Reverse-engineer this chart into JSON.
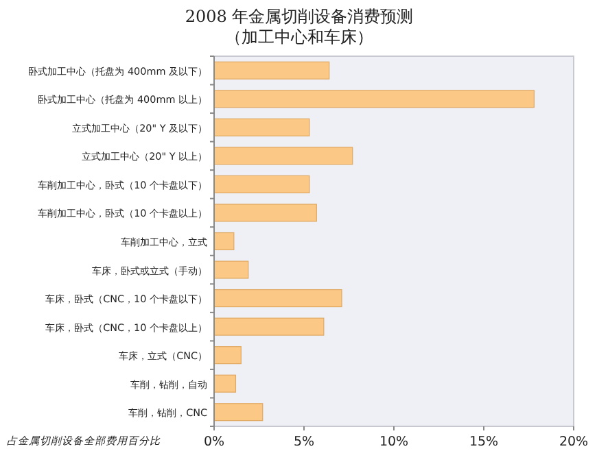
{
  "chart_data": {
    "type": "bar",
    "orientation": "horizontal",
    "title": "2008 年金属切削设备消费预测",
    "subtitle": "（加工中心和车床）",
    "xlabel": "占金属切削设备全部费用百分比",
    "categories": [
      "卧式加工中心（托盘为 400mm 及以下）",
      "卧式加工中心（托盘为 400mm 以上）",
      "立式加工中心（20\" Y 及以下）",
      "立式加工中心（20\" Y 以上）",
      "车削加工中心，卧式（10 个卡盘以下）",
      "车削加工中心，卧式（10 个卡盘以上）",
      "车削加工中心，立式",
      "车床，卧式或立式（手动）",
      "车床，卧式（CNC，10 个卡盘以下）",
      "车床，卧式（CNC，10 个卡盘以上）",
      "车床，立式（CNC）",
      "车削，钻削，自动",
      "车削，钻削，CNC"
    ],
    "values": [
      6.4,
      17.8,
      5.3,
      7.7,
      5.3,
      5.7,
      1.1,
      1.9,
      7.1,
      6.1,
      1.5,
      1.2,
      2.7
    ],
    "color": "#fbc886",
    "xlim": [
      0,
      20
    ],
    "xticks": [
      {
        "value": 0,
        "label": "0%"
      },
      {
        "value": 5,
        "label": "5%"
      },
      {
        "value": 10,
        "label": "10%"
      },
      {
        "value": 15,
        "label": "15%"
      },
      {
        "value": 20,
        "label": "20%"
      }
    ],
    "grid": false
  }
}
